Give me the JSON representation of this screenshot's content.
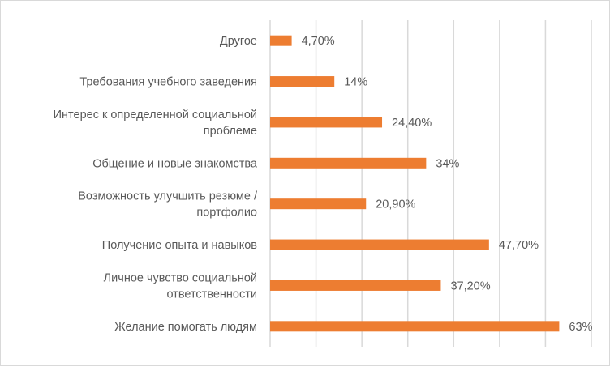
{
  "chart_data": {
    "type": "bar",
    "orientation": "horizontal",
    "title": "",
    "xlabel": "",
    "ylabel": "",
    "xlim": [
      0,
      70
    ],
    "grid": true,
    "bar_color": "#ED7D31",
    "categories": [
      [
        "Другое"
      ],
      [
        "Требования учебного заведения"
      ],
      [
        "Интерес к определенной социальной",
        "проблеме"
      ],
      [
        "Общение и новые знакомства"
      ],
      [
        "Возможность улучшить резюме /",
        "портфолио"
      ],
      [
        "Получение опыта и навыков"
      ],
      [
        "Личное чувство социальной",
        "ответственности"
      ],
      [
        "Желание помогать людям"
      ]
    ],
    "values": [
      4.7,
      14,
      24.4,
      34,
      20.9,
      47.7,
      37.2,
      63
    ],
    "data_labels": [
      "4,70%",
      "14%",
      "24,40%",
      "34%",
      "20,90%",
      "47,70%",
      "37,20%",
      "63%"
    ]
  }
}
